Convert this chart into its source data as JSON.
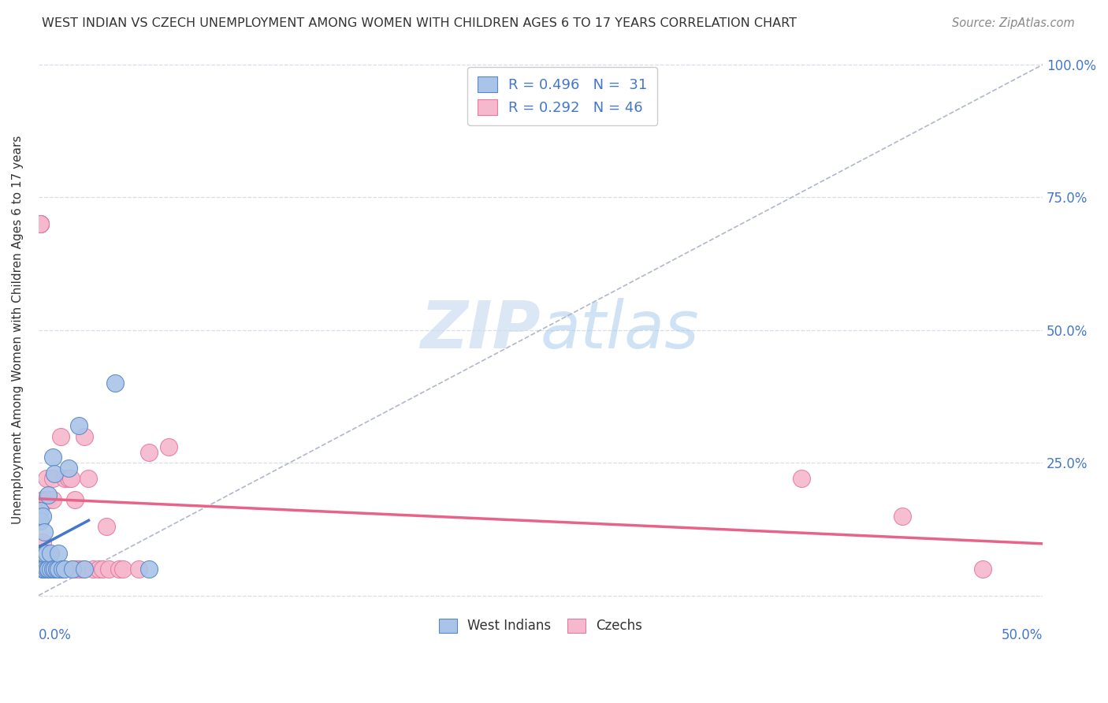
{
  "title": "WEST INDIAN VS CZECH UNEMPLOYMENT AMONG WOMEN WITH CHILDREN AGES 6 TO 17 YEARS CORRELATION CHART",
  "source": "Source: ZipAtlas.com",
  "ylabel": "Unemployment Among Women with Children Ages 6 to 17 years",
  "west_indian_R": "R = 0.496",
  "west_indian_N": "N =  31",
  "czech_R": "R = 0.292",
  "czech_N": "N = 46",
  "blue_scatter_color": "#aac4e8",
  "blue_edge_color": "#5588cc",
  "pink_scatter_color": "#f5b8cc",
  "pink_edge_color": "#e87aa0",
  "blue_line_color": "#4477cc",
  "pink_line_color": "#e8638a",
  "diag_color": "#b0b8c8",
  "watermark_color": "#ccddf0",
  "grid_color": "#d8dde8",
  "right_tick_color": "#4477cc",
  "wi_x": [
    0.001,
    0.001,
    0.001,
    0.002,
    0.002,
    0.002,
    0.003,
    0.003,
    0.003,
    0.004,
    0.004,
    0.005,
    0.005,
    0.005,
    0.006,
    0.006,
    0.007,
    0.007,
    0.008,
    0.008,
    0.009,
    0.01,
    0.01,
    0.012,
    0.013,
    0.015,
    0.017,
    0.02,
    0.023,
    0.038,
    0.055
  ],
  "wi_y": [
    0.16,
    0.14,
    0.08,
    0.15,
    0.08,
    0.05,
    0.05,
    0.08,
    0.12,
    0.05,
    0.08,
    0.19,
    0.05,
    0.05,
    0.05,
    0.08,
    0.05,
    0.26,
    0.23,
    0.05,
    0.05,
    0.05,
    0.08,
    0.05,
    0.05,
    0.24,
    0.05,
    0.32,
    0.05,
    0.4,
    0.05
  ],
  "cz_x": [
    0.001,
    0.001,
    0.001,
    0.001,
    0.002,
    0.002,
    0.002,
    0.003,
    0.003,
    0.004,
    0.004,
    0.005,
    0.005,
    0.005,
    0.006,
    0.007,
    0.007,
    0.008,
    0.009,
    0.01,
    0.01,
    0.011,
    0.012,
    0.013,
    0.015,
    0.016,
    0.017,
    0.018,
    0.019,
    0.02,
    0.022,
    0.023,
    0.025,
    0.027,
    0.03,
    0.032,
    0.034,
    0.035,
    0.04,
    0.042,
    0.05,
    0.055,
    0.065,
    0.38,
    0.43,
    0.47
  ],
  "cz_y": [
    0.7,
    0.7,
    0.7,
    0.7,
    0.05,
    0.1,
    0.18,
    0.18,
    0.05,
    0.18,
    0.22,
    0.05,
    0.18,
    0.05,
    0.05,
    0.22,
    0.18,
    0.05,
    0.05,
    0.05,
    0.05,
    0.3,
    0.05,
    0.22,
    0.22,
    0.22,
    0.05,
    0.18,
    0.05,
    0.05,
    0.05,
    0.3,
    0.22,
    0.05,
    0.05,
    0.05,
    0.13,
    0.05,
    0.05,
    0.05,
    0.05,
    0.27,
    0.28,
    0.22,
    0.15,
    0.05
  ],
  "xlim": [
    0.0,
    0.5
  ],
  "ylim": [
    -0.02,
    1.02
  ],
  "y_ticks": [
    0.0,
    0.25,
    0.5,
    0.75,
    1.0
  ],
  "y_tick_labels_right": [
    "",
    "25.0%",
    "50.0%",
    "75.0%",
    "100.0%"
  ],
  "x_minor_ticks": [
    0.0625,
    0.125,
    0.1875,
    0.25,
    0.3125,
    0.375,
    0.4375
  ]
}
